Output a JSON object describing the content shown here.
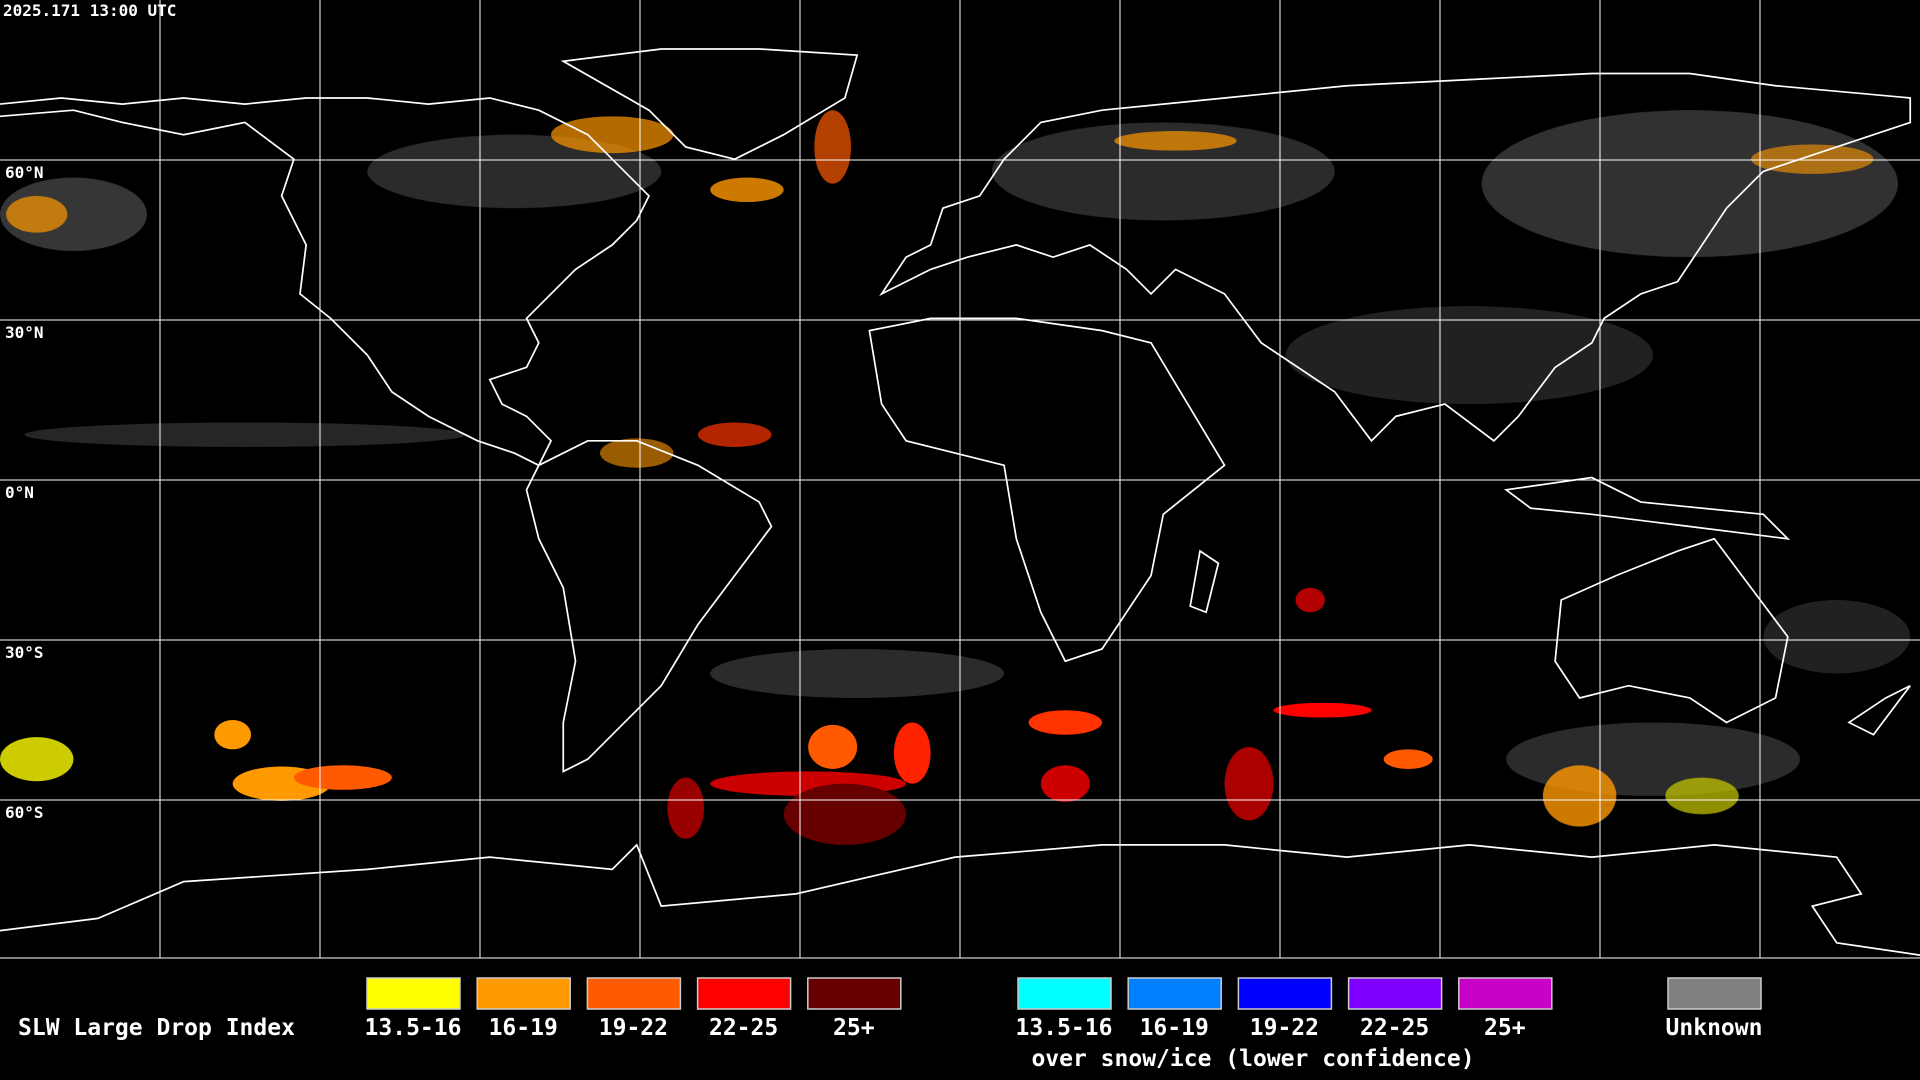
{
  "header": {
    "timestamp": "2025.171 13:00 UTC"
  },
  "map": {
    "lat_labels": [
      "60°N",
      "30°N",
      "0°N",
      "30°S",
      "60°S"
    ]
  },
  "legend": {
    "title": "SLW Large Drop Index",
    "items": [
      {
        "label": "13.5-16",
        "color": "#ffff00"
      },
      {
        "label": "16-19",
        "color": "#ff9900"
      },
      {
        "label": "19-22",
        "color": "#ff5a00"
      },
      {
        "label": "22-25",
        "color": "#ff0000"
      },
      {
        "label": "25+",
        "color": "#660000"
      }
    ],
    "snow_items": [
      {
        "label": "13.5-16",
        "color": "#00ffff"
      },
      {
        "label": "16-19",
        "color": "#0080ff"
      },
      {
        "label": "19-22",
        "color": "#0000ff"
      },
      {
        "label": "22-25",
        "color": "#7f00ff"
      },
      {
        "label": "25+",
        "color": "#c800c8"
      }
    ],
    "snow_caption": "over snow/ice (lower confidence)",
    "unknown": {
      "label": "Unknown",
      "color": "#808080"
    }
  }
}
